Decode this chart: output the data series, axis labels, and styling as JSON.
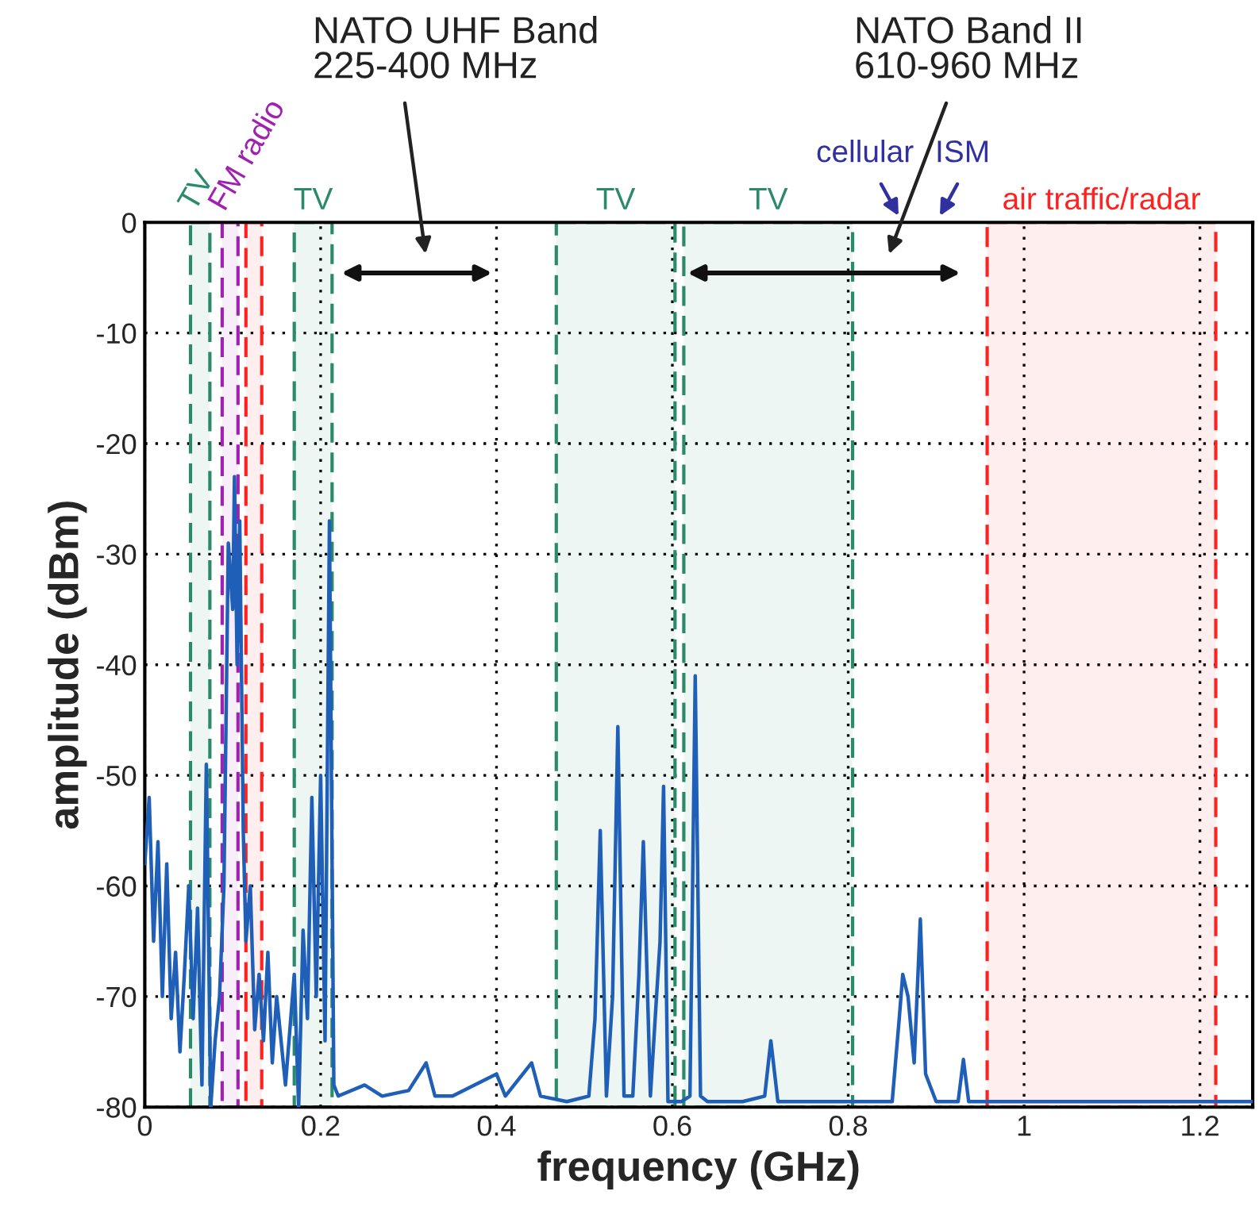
{
  "chart_data": {
    "type": "line",
    "xlabel": "frequency (GHz)",
    "ylabel": "amplitude (dBm)",
    "xlim": [
      0,
      1.26
    ],
    "xticks": [
      0,
      0.2,
      0.4,
      0.6,
      0.8,
      1,
      1.2
    ],
    "ylim": [
      -80,
      0
    ],
    "yticks": [
      -80,
      -70,
      -60,
      -50,
      -40,
      -30,
      -20,
      -10,
      0
    ],
    "grid": true,
    "marker": "none",
    "line_style": "solid",
    "series": [
      {
        "color": "#1f5fb8",
        "x": [
          0,
          0.005,
          0.01,
          0.015,
          0.02,
          0.025,
          0.03,
          0.035,
          0.04,
          0.045,
          0.05,
          0.055,
          0.06,
          0.065,
          0.07,
          0.075,
          0.08,
          0.085,
          0.09,
          0.095,
          0.1,
          0.102,
          0.105,
          0.108,
          0.112,
          0.115,
          0.12,
          0.125,
          0.13,
          0.135,
          0.14,
          0.145,
          0.15,
          0.16,
          0.17,
          0.175,
          0.18,
          0.185,
          0.19,
          0.195,
          0.2,
          0.205,
          0.21,
          0.215,
          0.22,
          0.25,
          0.27,
          0.3,
          0.32,
          0.33,
          0.35,
          0.4,
          0.41,
          0.44,
          0.45,
          0.48,
          0.505,
          0.512,
          0.518,
          0.525,
          0.532,
          0.538,
          0.545,
          0.555,
          0.562,
          0.567,
          0.575,
          0.582,
          0.586,
          0.59,
          0.595,
          0.61,
          0.62,
          0.626,
          0.632,
          0.64,
          0.68,
          0.705,
          0.712,
          0.72,
          0.76,
          0.8,
          0.85,
          0.858,
          0.862,
          0.868,
          0.875,
          0.882,
          0.888,
          0.9,
          0.925,
          0.931,
          0.937,
          0.96,
          1.1,
          1.26
        ],
        "values": [
          -58,
          -52,
          -65,
          -56,
          -70,
          -58,
          -72,
          -66,
          -75,
          -68,
          -60,
          -72,
          -62,
          -78,
          -49,
          -80,
          -74,
          -70,
          -60,
          -29,
          -35,
          -23,
          -40,
          -27,
          -55,
          -65,
          -60,
          -73,
          -68,
          -74,
          -66,
          -76,
          -70,
          -78,
          -68,
          -80,
          -64,
          -72,
          -52,
          -70,
          -50,
          -74,
          -27,
          -78,
          -79,
          -78,
          -79,
          -78.5,
          -76,
          -79,
          -79,
          -77,
          -79,
          -76,
          -79,
          -79.5,
          -79,
          -72,
          -55,
          -79,
          -70,
          -45.6,
          -79,
          -79,
          -68,
          -56,
          -79,
          -70,
          -65,
          -51,
          -79.5,
          -79.5,
          -79,
          -41,
          -79,
          -79.5,
          -79.5,
          -79,
          -74,
          -79.5,
          -79.5,
          -79.5,
          -79.5,
          -72,
          -68,
          -70,
          -76,
          -63,
          -77,
          -79.5,
          -79.5,
          -75.7,
          -79.5,
          -79.5,
          -79.5,
          -79.5
        ]
      }
    ],
    "bands": [
      {
        "axis": "x",
        "from": 0.052,
        "to": 0.074,
        "label": "TV",
        "color": "#2a8a6a"
      },
      {
        "axis": "x",
        "from": 0.088,
        "to": 0.106,
        "label": "FM radio",
        "color": "#a020b0"
      },
      {
        "axis": "x",
        "from": 0.115,
        "to": 0.133,
        "color": "#ff2020"
      },
      {
        "axis": "x",
        "from": 0.17,
        "to": 0.213,
        "label": "TV",
        "color": "#2a8a6a"
      },
      {
        "axis": "x",
        "from": 0.468,
        "to": 0.603,
        "label": "TV",
        "color": "#2a8a6a"
      },
      {
        "axis": "x",
        "from": 0.613,
        "to": 0.805,
        "label": "TV",
        "color": "#2a8a6a"
      },
      {
        "axis": "x",
        "from": 0.958,
        "to": 1.218,
        "label": "air traffic/radar",
        "color": "#ff2020"
      }
    ],
    "annotations": [
      "NATO UHF Band\n225-400 MHz",
      "NATO Band II\n610-960 MHz",
      "cellular",
      "ISM"
    ]
  }
}
